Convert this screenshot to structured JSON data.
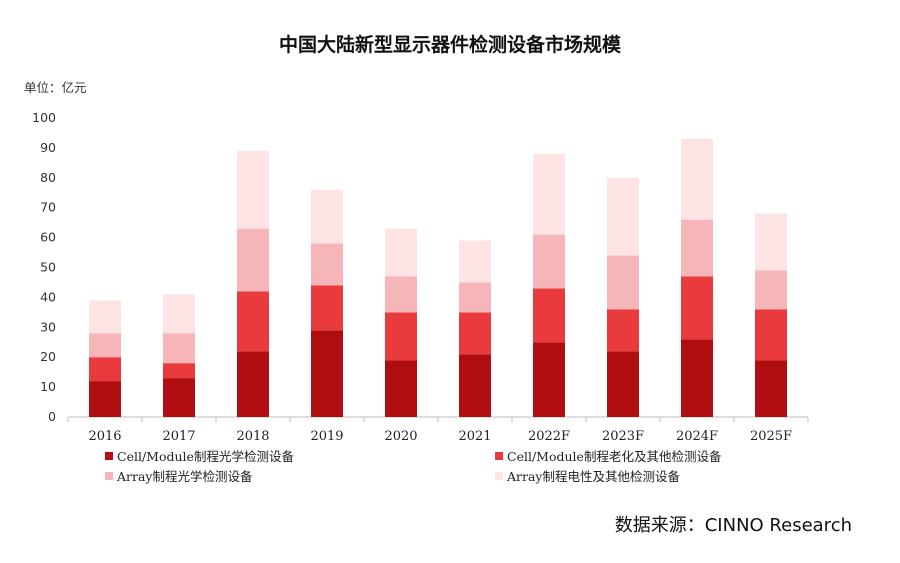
{
  "chart_data": {
    "type": "bar",
    "stacked": true,
    "title": "中国大陆新型显示器件检测设备市场规模",
    "unit": "单位：亿元",
    "source": "数据来源：CINNO Research",
    "categories": [
      "2016",
      "2017",
      "2018",
      "2019",
      "2020",
      "2021",
      "2022F",
      "2023F",
      "2024F",
      "2025F"
    ],
    "ylim": [
      0,
      100
    ],
    "yticks": [
      0,
      10,
      20,
      30,
      40,
      50,
      60,
      70,
      80,
      90,
      100
    ],
    "grid": false,
    "legend_position": "bottom",
    "series": [
      {
        "name": "Cell/Module制程光学检测设备",
        "color": "#b00d10",
        "values": [
          12,
          13,
          22,
          29,
          19,
          21,
          25,
          22,
          26,
          19
        ]
      },
      {
        "name": "Cell/Module制程老化及其他检测设备",
        "color": "#e93b3e",
        "values": [
          8,
          5,
          20,
          15,
          16,
          14,
          18,
          14,
          21,
          17
        ]
      },
      {
        "name": "Array制程光学检测设备",
        "color": "#f6b5b8",
        "values": [
          8,
          10,
          21,
          14,
          12,
          10,
          18,
          18,
          19,
          13
        ]
      },
      {
        "name": "Array制程电性及其他检测设备",
        "color": "#fde3e4",
        "values": [
          11,
          13,
          26,
          18,
          16,
          14,
          27,
          26,
          27,
          19
        ]
      }
    ]
  }
}
